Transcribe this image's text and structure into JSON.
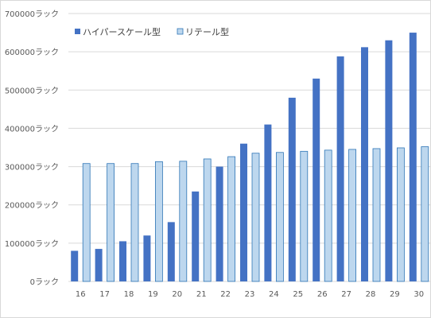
{
  "chart_data": {
    "type": "bar",
    "categories": [
      "16",
      "17",
      "18",
      "19",
      "20",
      "21",
      "22",
      "23",
      "24",
      "25",
      "26",
      "27",
      "28",
      "29",
      "30"
    ],
    "series": [
      {
        "name": "ハイパースケール型",
        "color": "#4472c4",
        "values": [
          80000,
          85000,
          105000,
          120000,
          155000,
          235000,
          300000,
          360000,
          410000,
          480000,
          530000,
          588000,
          612000,
          630000,
          650000
        ]
      },
      {
        "name": "リテール型",
        "color": "#bdd7ee",
        "border": "#2e75b6",
        "values": [
          308000,
          308000,
          308000,
          313000,
          314000,
          320000,
          326000,
          335000,
          337000,
          340000,
          343000,
          345000,
          347000,
          349000,
          352000
        ]
      }
    ],
    "ylim": [
      0,
      700000
    ],
    "yticks": [
      0,
      100000,
      200000,
      300000,
      400000,
      500000,
      600000,
      700000
    ],
    "ytick_labels": [
      "0ラック",
      "100000ラック",
      "200000ラック",
      "300000ラック",
      "400000ラック",
      "500000ラック",
      "600000ラック",
      "700000ラック"
    ],
    "grid": true,
    "legend_position": "top-left"
  }
}
